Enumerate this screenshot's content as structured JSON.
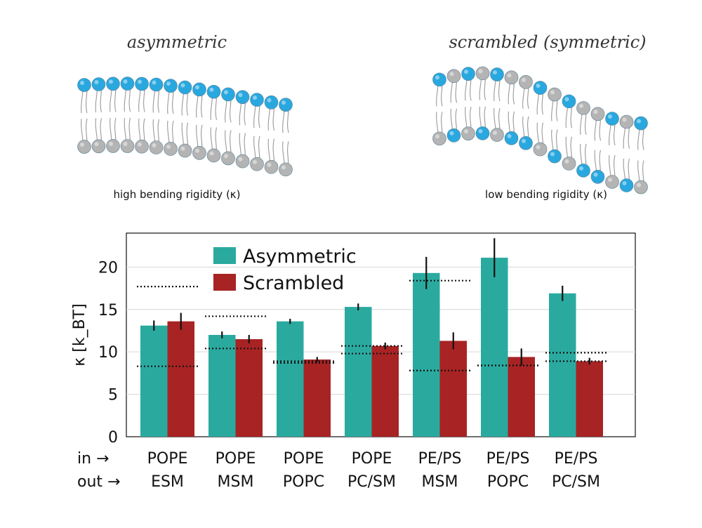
{
  "illustration": {
    "left_title": "asymmetric",
    "right_title": "scrambled (symmetric)",
    "left_caption": "high bending rigidity (κ)",
    "right_caption": "low bending rigidity (κ)",
    "colors": {
      "blue_head": "#29a8e0",
      "grey_head": "#b4b4b4",
      "tail": "#9a9a9a"
    }
  },
  "row_labels": {
    "inner": "in →",
    "outer": "out →"
  },
  "chart_data": {
    "type": "bar",
    "ylabel": "κ [k_BT]",
    "ylim": [
      0,
      24
    ],
    "yticks": [
      0,
      5,
      10,
      15,
      20
    ],
    "grid": true,
    "legend_position": "top-center",
    "categories": [
      {
        "inner": "POPE",
        "outer": "ESM"
      },
      {
        "inner": "POPE",
        "outer": "MSM"
      },
      {
        "inner": "POPE",
        "outer": "POPC"
      },
      {
        "inner": "POPE",
        "outer": "PC/SM"
      },
      {
        "inner": "PE/PS",
        "outer": "MSM"
      },
      {
        "inner": "PE/PS",
        "outer": "POPC"
      },
      {
        "inner": "PE/PS",
        "outer": "PC/SM"
      }
    ],
    "series": [
      {
        "name": "Asymmetric",
        "color": "#2aaa9f",
        "values": [
          13.1,
          12.0,
          13.6,
          15.3,
          19.3,
          21.1,
          16.9
        ],
        "errors": [
          0.6,
          0.4,
          0.3,
          0.4,
          1.9,
          2.3,
          0.9
        ]
      },
      {
        "name": "Scrambled",
        "color": "#a82323",
        "values": [
          13.6,
          11.5,
          9.1,
          10.7,
          11.3,
          9.4,
          8.9
        ],
        "errors": [
          1.0,
          0.5,
          0.3,
          0.4,
          1.0,
          1.0,
          0.4
        ]
      }
    ],
    "reference_lines": [
      [
        17.7,
        8.3
      ],
      [
        14.2,
        10.4
      ],
      [
        8.9,
        8.7
      ],
      [
        10.7,
        9.8
      ],
      [
        18.4,
        7.8
      ],
      [
        8.4,
        8.4
      ],
      [
        9.9,
        8.9
      ]
    ]
  }
}
